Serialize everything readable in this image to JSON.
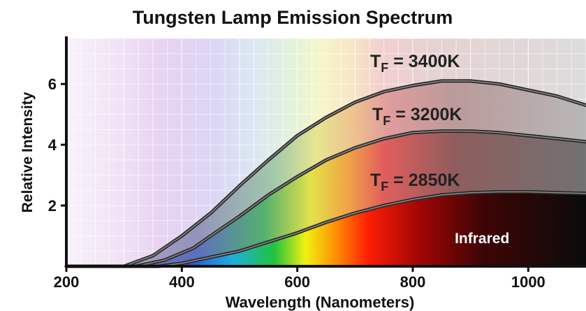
{
  "chart_data": {
    "type": "line",
    "title": "Tungsten Lamp Emission Spectrum",
    "xlabel": "Wavelength (Nanometers)",
    "ylabel": "Relative Intensity",
    "xlim": [
      200,
      1100
    ],
    "ylim": [
      0,
      7.5
    ],
    "xticks": [
      200,
      400,
      600,
      800,
      1000
    ],
    "yticks": [
      2,
      4,
      6
    ],
    "grid": true,
    "series": [
      {
        "name": "3400K",
        "label_prefix": "T",
        "label_sub": "F",
        "label_suffix": " = 3400K",
        "x": [
          200,
          300,
          350,
          400,
          450,
          500,
          550,
          600,
          650,
          700,
          750,
          800,
          850,
          900,
          950,
          1000,
          1050,
          1100
        ],
        "y": [
          0,
          0,
          0.35,
          1.0,
          1.75,
          2.65,
          3.5,
          4.3,
          4.9,
          5.4,
          5.75,
          5.95,
          6.1,
          6.1,
          6.0,
          5.8,
          5.6,
          5.3
        ]
      },
      {
        "name": "3200K",
        "label_prefix": "T",
        "label_sub": "F",
        "label_suffix": " = 3200K",
        "x": [
          200,
          320,
          370,
          420,
          450,
          500,
          550,
          600,
          650,
          700,
          750,
          800,
          850,
          900,
          950,
          1000,
          1050,
          1100
        ],
        "y": [
          0,
          0,
          0.2,
          0.6,
          1.0,
          1.65,
          2.35,
          2.95,
          3.5,
          3.9,
          4.2,
          4.4,
          4.45,
          4.45,
          4.4,
          4.3,
          4.2,
          4.1
        ]
      },
      {
        "name": "2850K",
        "label_prefix": "T",
        "label_sub": "F",
        "label_suffix": " = 2850K",
        "x": [
          200,
          360,
          400,
          450,
          500,
          550,
          600,
          650,
          700,
          750,
          800,
          850,
          900,
          950,
          1000,
          1050,
          1100
        ],
        "y": [
          0,
          0,
          0.1,
          0.3,
          0.5,
          0.8,
          1.1,
          1.45,
          1.75,
          2.0,
          2.2,
          2.35,
          2.42,
          2.45,
          2.45,
          2.42,
          2.4
        ]
      }
    ],
    "annotations": [
      {
        "text": "Infrared",
        "x": 920,
        "y": 0.9
      }
    ]
  }
}
